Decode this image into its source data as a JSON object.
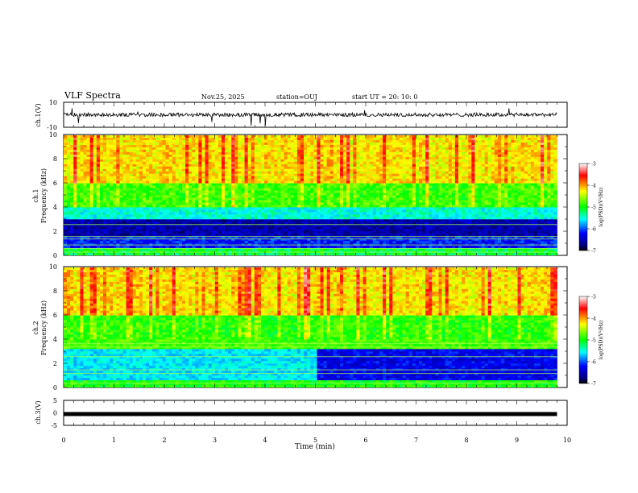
{
  "header": {
    "title": "VLF Spectra",
    "date": "Nov.25, 2025",
    "station": "station=OUJ",
    "start_ut": "start  UT =   20: 10: 0"
  },
  "chart_data": [
    {
      "type": "line",
      "name": "ch1-waveform",
      "ylabel": "ch.1(V)",
      "ylim": [
        -10,
        10
      ],
      "yticks": [
        "10",
        "-10"
      ],
      "xlim": [
        0,
        10
      ],
      "note_values": {
        "baseline": 0,
        "typical_amplitude": 1.5,
        "max_spike": -9
      }
    },
    {
      "type": "heatmap",
      "name": "ch1-spectrogram",
      "ylabel": "ch.1\nFrequency (kHz)",
      "ylabel_line1": "ch.1",
      "ylabel_line2": "Frequency (kHz)",
      "ylim": [
        0,
        10
      ],
      "yticks": [
        "0",
        "2",
        "4",
        "6",
        "8",
        "10"
      ],
      "xlim": [
        0,
        10
      ],
      "data_end_min": 9.8,
      "colorbar": {
        "label": "log(PSD)(V²/Hz)",
        "range": [
          -7,
          -3
        ],
        "ticks": [
          "-3",
          "-4",
          "-5",
          "-6",
          "-7"
        ]
      }
    },
    {
      "type": "heatmap",
      "name": "ch2-spectrogram",
      "ylabel_line1": "ch.2",
      "ylabel_line2": "Frequency (kHz)",
      "ylim": [
        0,
        10
      ],
      "yticks": [
        "0",
        "2",
        "4",
        "6",
        "8",
        "10"
      ],
      "xlim": [
        0,
        10
      ],
      "data_end_min": 9.8,
      "change_at_min": 5.0,
      "colorbar": {
        "label": "log(PSD)(V²/Hz)",
        "range": [
          -7,
          -3
        ],
        "ticks": [
          "-3",
          "-4",
          "-5",
          "-6",
          "-7"
        ]
      }
    },
    {
      "type": "line",
      "name": "ch3-waveform",
      "ylabel": "ch.3(V)",
      "ylim": [
        -5,
        5
      ],
      "yticks": [
        "5",
        "0",
        "-5"
      ],
      "xlim": [
        0,
        10
      ],
      "constant_value": -0.5
    }
  ],
  "xaxis": {
    "label": "Time (min)",
    "ticks": [
      "0",
      "1",
      "2",
      "3",
      "4",
      "5",
      "6",
      "7",
      "8",
      "9",
      "10"
    ]
  }
}
